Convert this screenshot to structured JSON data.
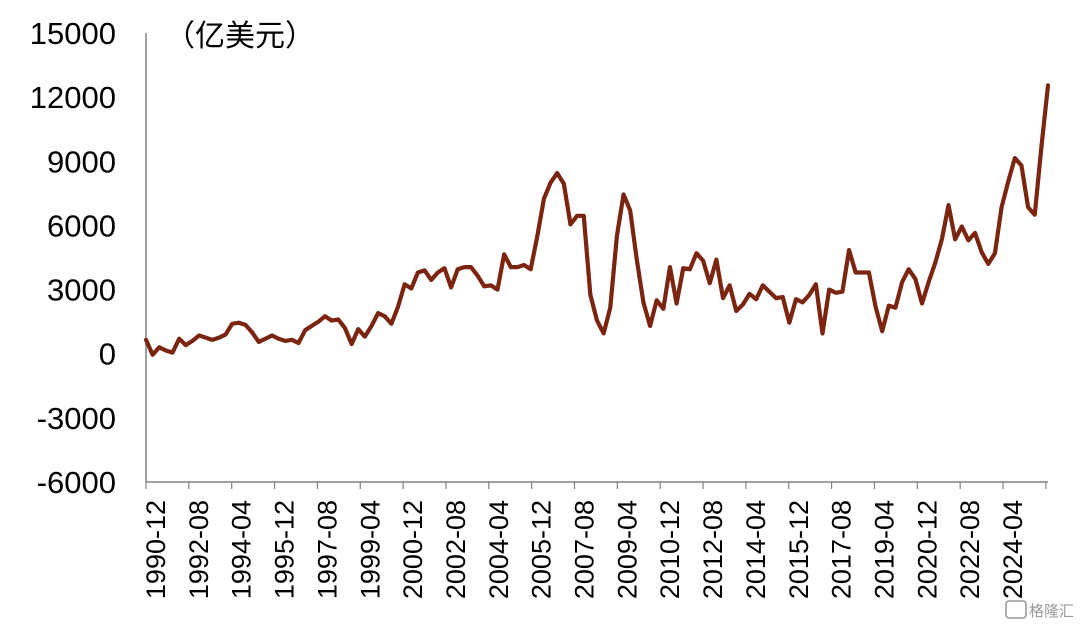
{
  "chart_data": {
    "type": "line",
    "title": "",
    "unit_label": "（亿美元）",
    "xlabel": "",
    "ylabel": "",
    "ylim": [
      -6000,
      15000
    ],
    "yticks": [
      "15000",
      "12000",
      "9000",
      "6000",
      "3000",
      "0",
      "-3000",
      "-6000"
    ],
    "xticks": [
      "1990-12",
      "1992-08",
      "1994-04",
      "1995-12",
      "1997-08",
      "1999-04",
      "2000-12",
      "2002-08",
      "2004-04",
      "2005-12",
      "2007-08",
      "2009-04",
      "2010-12",
      "2012-08",
      "2014-04",
      "2015-12",
      "2017-08",
      "2019-04",
      "2020-12",
      "2022-08",
      "2024-04"
    ],
    "grid": false,
    "legend": "none",
    "line_color": "#7B2511",
    "series": [
      {
        "values": [
          650,
          -50,
          300,
          150,
          50,
          700,
          400,
          600,
          850,
          750,
          650,
          750,
          900,
          1400,
          1450,
          1350,
          1000,
          550,
          700,
          850,
          700,
          600,
          650,
          500,
          1100,
          1300,
          1500,
          1750,
          1550,
          1600,
          1200,
          450,
          1150,
          800,
          1300,
          1900,
          1750,
          1400,
          2200,
          3250,
          3050,
          3800,
          3900,
          3450,
          3800,
          4000,
          3100,
          3950,
          4050,
          4050,
          3650,
          3150,
          3200,
          3000,
          4650,
          4050,
          4050,
          4150,
          3950,
          5500,
          7250,
          8000,
          8450,
          7950,
          6050,
          6450,
          6450,
          2750,
          1550,
          950,
          2150,
          5500,
          7450,
          6700,
          4400,
          2400,
          1300,
          2500,
          2100,
          4050,
          2350,
          4000,
          3950,
          4700,
          4350,
          3300,
          4400,
          2600,
          3200,
          2000,
          2300,
          2800,
          2550,
          3200,
          2900,
          2600,
          2650,
          1450,
          2550,
          2400,
          2750,
          3250,
          950,
          3000,
          2850,
          2900,
          4850,
          3800,
          3800,
          3800,
          2200,
          1050,
          2250,
          2150,
          3350,
          3950,
          3500,
          2350,
          3350,
          4250,
          5350,
          6950,
          5350,
          5950,
          5300,
          5650,
          4750,
          4200,
          4700,
          6850,
          8050,
          9150,
          8800,
          6850,
          6500,
          9650,
          12550
        ]
      }
    ]
  },
  "watermark": "格隆汇"
}
